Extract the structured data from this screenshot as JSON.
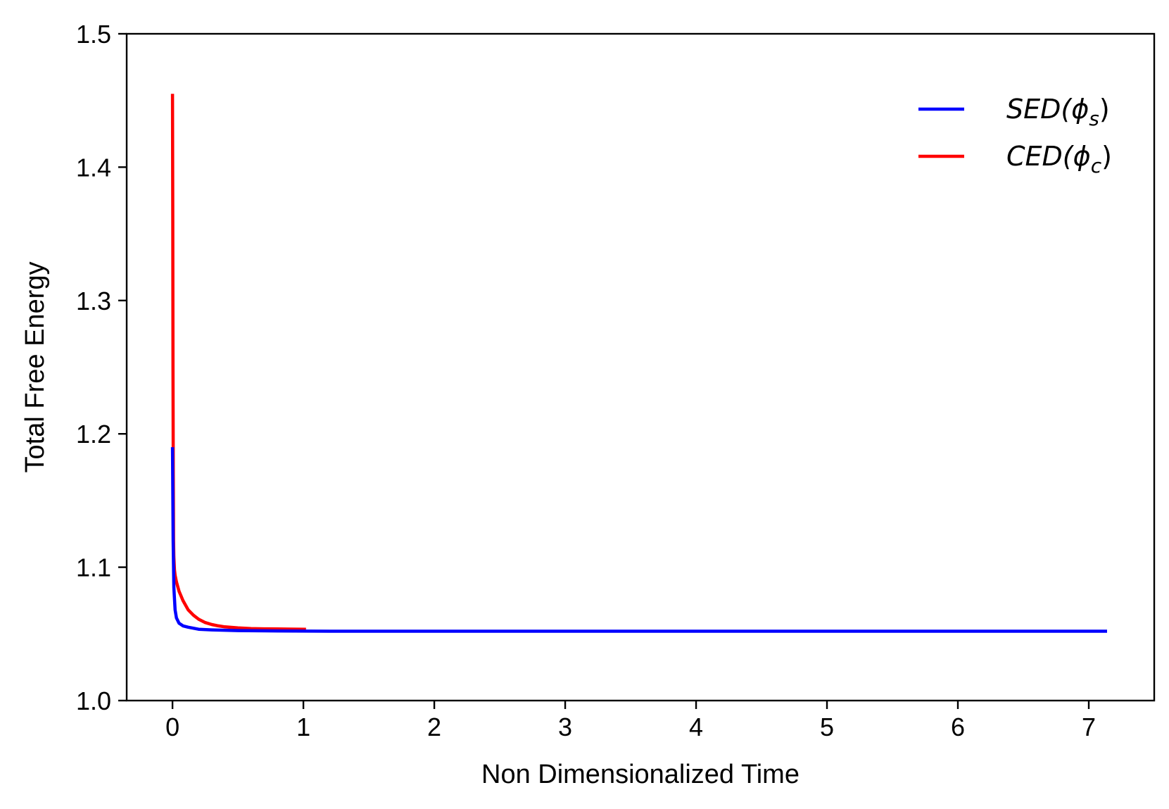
{
  "chart_data": {
    "type": "line",
    "title": "",
    "xlabel": "Non Dimensionalized Time",
    "ylabel": "Total Free Energy",
    "xlim": [
      -0.35,
      7.5
    ],
    "ylim": [
      1.0,
      1.5
    ],
    "xticks": [
      0,
      1,
      2,
      3,
      4,
      5,
      6,
      7
    ],
    "xtick_labels": [
      "0",
      "1",
      "2",
      "3",
      "4",
      "5",
      "6",
      "7"
    ],
    "yticks": [
      1.0,
      1.1,
      1.2,
      1.3,
      1.4,
      1.5
    ],
    "ytick_labels": [
      "1.0",
      "1.1",
      "1.2",
      "1.3",
      "1.4",
      "1.5"
    ],
    "grid": false,
    "legend_position": "top-right",
    "series": [
      {
        "name": "SED(ϕs)",
        "legend_main": "SED(ϕ",
        "legend_sub": "s",
        "legend_close": ")",
        "color": "#0000ff",
        "x": [
          0.0,
          0.005,
          0.01,
          0.02,
          0.03,
          0.05,
          0.08,
          0.12,
          0.2,
          0.3,
          0.5,
          0.8,
          1.2,
          2.0,
          3.0,
          4.0,
          5.0,
          6.0,
          7.14
        ],
        "y": [
          1.19,
          1.12,
          1.085,
          1.068,
          1.062,
          1.058,
          1.056,
          1.055,
          1.0535,
          1.053,
          1.0525,
          1.0522,
          1.052,
          1.052,
          1.052,
          1.052,
          1.052,
          1.052,
          1.052
        ]
      },
      {
        "name": "CED(ϕc)",
        "legend_main": "CED(ϕ",
        "legend_sub": "c",
        "legend_close": ")",
        "color": "#ff0000",
        "x": [
          0.0,
          0.002,
          0.004,
          0.006,
          0.008,
          0.01,
          0.015,
          0.02,
          0.03,
          0.05,
          0.08,
          0.12,
          0.16,
          0.2,
          0.25,
          0.3,
          0.35,
          0.4,
          0.5,
          0.6,
          0.7,
          0.8,
          0.9,
          1.02
        ],
        "y": [
          1.455,
          1.36,
          1.25,
          1.17,
          1.12,
          1.108,
          1.098,
          1.094,
          1.089,
          1.082,
          1.075,
          1.068,
          1.064,
          1.061,
          1.0585,
          1.057,
          1.056,
          1.0553,
          1.0545,
          1.054,
          1.0538,
          1.0537,
          1.0536,
          1.0535
        ]
      }
    ]
  }
}
